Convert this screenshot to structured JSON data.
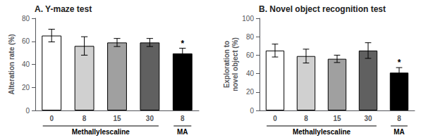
{
  "chart_data": [
    {
      "type": "bar",
      "title": "A. Y-maze test",
      "ylabel": "Alteration rate (%)",
      "categories": [
        "0",
        "8",
        "15",
        "30",
        "8"
      ],
      "values": [
        65.0,
        56.0,
        59.0,
        59.0,
        49.5
      ],
      "errors": [
        5.5,
        8.0,
        3.5,
        3.5,
        4.5
      ],
      "colors": [
        "#ffffff",
        "#d0d0d0",
        "#a0a0a0",
        "#606060",
        "#000000"
      ],
      "significance": [
        null,
        null,
        null,
        null,
        "*"
      ],
      "groups": [
        {
          "label": "Methallylescaline",
          "count": 4
        },
        {
          "label": "MA",
          "count": 1
        }
      ],
      "ylim": [
        0,
        80
      ],
      "yticks": [
        0,
        20,
        40,
        60,
        80
      ],
      "grid": false
    },
    {
      "type": "bar",
      "title": "B. Novel object recognition test",
      "ylabel": "Exploration to\nnovel object (%)",
      "categories": [
        "0",
        "8",
        "15",
        "30",
        "8"
      ],
      "values": [
        65.0,
        59.0,
        56.0,
        65.0,
        41.0
      ],
      "errors": [
        7.0,
        7.5,
        4.0,
        8.5,
        5.5
      ],
      "colors": [
        "#ffffff",
        "#d0d0d0",
        "#a0a0a0",
        "#606060",
        "#000000"
      ],
      "significance": [
        null,
        null,
        null,
        null,
        "*"
      ],
      "groups": [
        {
          "label": "Methallylescaline",
          "count": 4
        },
        {
          "label": "MA",
          "count": 1
        }
      ],
      "ylim": [
        0,
        100
      ],
      "yticks": [
        0,
        20,
        40,
        60,
        80,
        100
      ],
      "grid": false
    }
  ]
}
